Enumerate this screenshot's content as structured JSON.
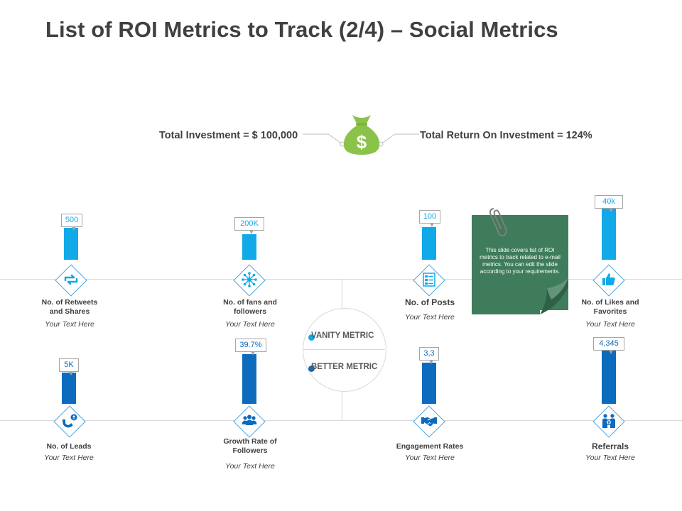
{
  "title": "List of ROI Metrics to Track (2/4) – Social Metrics",
  "investment": {
    "left_label": "Total Investment = $ 100,000",
    "right_label": "Total Return On Investment = 124%",
    "icon": "money-bag-icon"
  },
  "legend": {
    "vanity": "VANITY METRIC",
    "better": "BETTER METRIC"
  },
  "note": {
    "text": "This slide covers list of ROI metrics to track related to e-mail metrics. You can edit the slide according to your requirements."
  },
  "colors": {
    "vanity": "#12a9e8",
    "better": "#0c6bbd",
    "accent_green": "#8bc34a",
    "note_green": "#3e7c5c"
  },
  "chart_data": {
    "type": "bar",
    "title": "List of ROI Metrics to Track (2/4) – Social Metrics",
    "series": [
      {
        "name": "VANITY METRIC",
        "categories": [
          "No. of Retweets and Shares",
          "No. of fans and followers",
          "No. of Posts",
          "No. of Likes and Favorites"
        ],
        "labels": [
          "500",
          "200K",
          "100",
          "40k"
        ]
      },
      {
        "name": "BETTER METRIC",
        "categories": [
          "No. of Leads",
          "Growth Rate of Followers",
          "Engagement Rates",
          "Referrals"
        ],
        "labels": [
          "5K",
          "39.7%",
          "3,3",
          "4,345"
        ]
      }
    ]
  },
  "metrics": {
    "top": [
      {
        "value": "500",
        "label": "No. of Retweets and Shares",
        "sub": "Your Text Here",
        "icon": "retweet-icon"
      },
      {
        "value": "200K",
        "label": "No. of fans and followers",
        "sub": "Your Text Here",
        "icon": "network-icon"
      },
      {
        "value": "100",
        "label": "No. of Posts",
        "sub": "Your Text Here",
        "icon": "posts-list-icon"
      },
      {
        "value": "40k",
        "label": "No. of Likes and Favorites",
        "sub": "Your Text Here",
        "icon": "thumbs-up-icon"
      }
    ],
    "bottom": [
      {
        "value": "5K",
        "label": "No. of Leads",
        "sub": "Your Text Here",
        "icon": "magnet-user-icon"
      },
      {
        "value": "39.7%",
        "label": "Growth Rate of Followers",
        "sub": "Your Text Here",
        "icon": "group-icon"
      },
      {
        "value": "3,3",
        "label": "Engagement Rates",
        "sub": "Your Text Here",
        "icon": "handshake-icon"
      },
      {
        "value": "4,345",
        "label": "Referrals",
        "sub": "Your Text Here",
        "icon": "referral-people-icon"
      }
    ]
  }
}
